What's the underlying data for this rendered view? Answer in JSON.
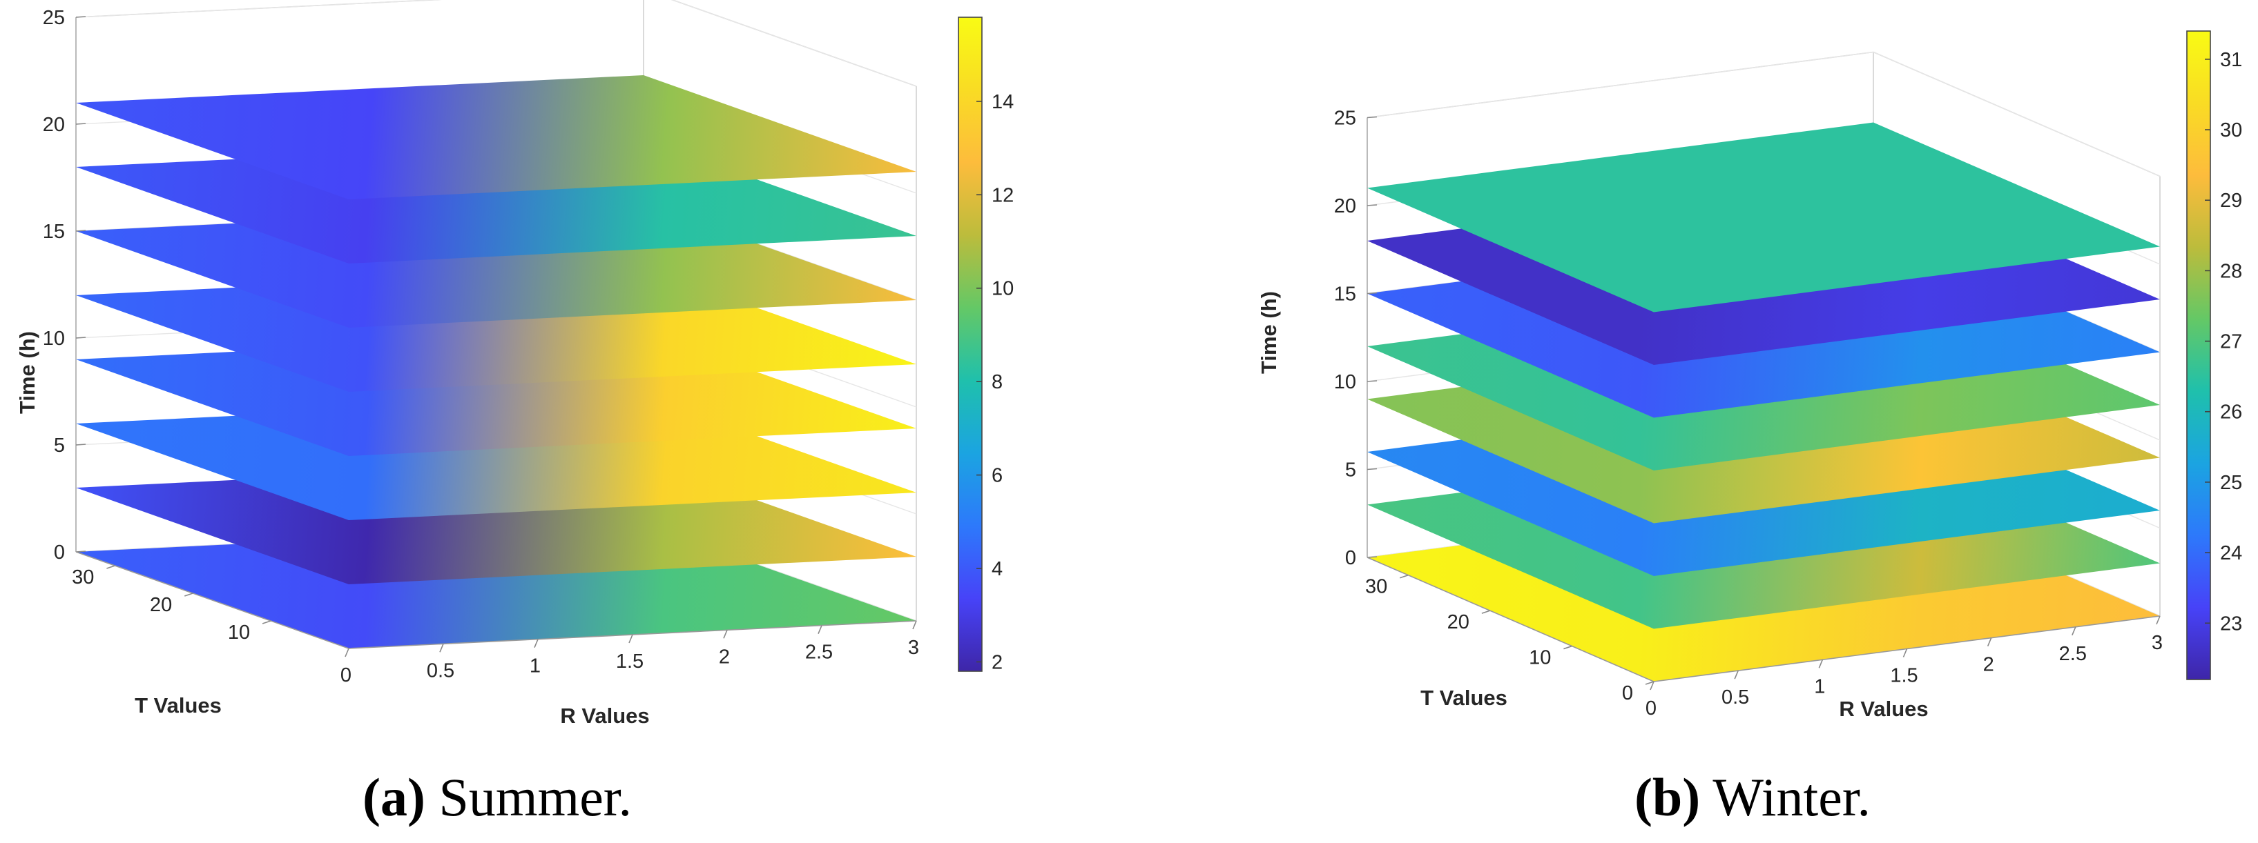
{
  "colormap": [
    "#3e26a8",
    "#4743f8",
    "#2d79fb",
    "#1ba4e1",
    "#1fc0ac",
    "#64c866",
    "#bcbc3c",
    "#fdbc3c",
    "#f9dc24",
    "#f9fb14"
  ],
  "chart_data": [
    {
      "type": "slice-surface-3d",
      "caption_letter": "(a)",
      "caption_text": " Summer.",
      "xlabel": "R Values",
      "ylabel": "T Values",
      "zlabel": "Time (h)",
      "xlim": [
        0,
        3
      ],
      "ylim": [
        0,
        35
      ],
      "zlim": [
        0,
        25
      ],
      "xticks": [
        "0",
        "0.5",
        "1",
        "1.5",
        "2",
        "2.5",
        "3"
      ],
      "xtick_values": [
        0,
        0.5,
        1,
        1.5,
        2,
        2.5,
        3
      ],
      "yticks": [
        "10",
        "20",
        "30"
      ],
      "ytick_values": [
        10,
        20,
        30
      ],
      "zticks": [
        "0",
        "5",
        "10",
        "15",
        "20",
        "25"
      ],
      "ztick_values": [
        0,
        5,
        10,
        15,
        20,
        25
      ],
      "colorbar_ticks": [
        "2",
        "4",
        "6",
        "8",
        "10",
        "12",
        "14"
      ],
      "colorbar_tick_values": [
        2,
        4,
        6,
        8,
        10,
        12,
        14
      ],
      "colorbar_range": [
        1.8,
        15.8
      ],
      "slices": [
        {
          "time": 0,
          "near": 3.6,
          "far": 4.2,
          "mid": 9.0,
          "right": 9.6
        },
        {
          "time": 3,
          "near": 1.9,
          "far": 3.8,
          "mid": 10.8,
          "right": 12.8
        },
        {
          "time": 6,
          "near": 4.6,
          "far": 4.8,
          "mid": 13.8,
          "right": 14.8
        },
        {
          "time": 9,
          "near": 4.0,
          "far": 4.6,
          "mid": 13.6,
          "right": 15.2
        },
        {
          "time": 12,
          "near": 3.8,
          "far": 4.4,
          "mid": 14.0,
          "right": 15.4
        },
        {
          "time": 15,
          "near": 3.6,
          "far": 4.2,
          "mid": 10.4,
          "right": 12.6
        },
        {
          "time": 18,
          "near": 3.2,
          "far": 4.0,
          "mid": 8.2,
          "right": 8.6
        },
        {
          "time": 21,
          "near": 3.4,
          "far": 3.9,
          "mid": 10.4,
          "right": 12.6
        }
      ]
    },
    {
      "type": "slice-surface-3d",
      "caption_letter": "(b)",
      "caption_text": " Winter.",
      "xlabel": "R Values",
      "ylabel": "T Values",
      "zlabel": "Time (h)",
      "xlim": [
        0,
        3
      ],
      "ylim": [
        0,
        35
      ],
      "zlim": [
        0,
        25
      ],
      "xticks": [
        "0",
        "0.5",
        "1",
        "1.5",
        "2",
        "2.5",
        "3"
      ],
      "xtick_values": [
        0,
        0.5,
        1,
        1.5,
        2,
        2.5,
        3
      ],
      "yticks": [
        "0",
        "10",
        "20",
        "30"
      ],
      "ytick_values": [
        0,
        10,
        20,
        30
      ],
      "zticks": [
        "0",
        "5",
        "10",
        "15",
        "20",
        "25"
      ],
      "ztick_values": [
        0,
        5,
        10,
        15,
        20,
        25
      ],
      "colorbar_ticks": [
        "23",
        "24",
        "25",
        "26",
        "27",
        "28",
        "29",
        "30",
        "31"
      ],
      "colorbar_tick_values": [
        23,
        24,
        25,
        26,
        27,
        28,
        29,
        30,
        31
      ],
      "colorbar_range": [
        22.2,
        31.4
      ],
      "slices": [
        {
          "time": 0,
          "near": 31.0,
          "far": 31.2,
          "mid": 29.8,
          "right": 29.4
        },
        {
          "time": 3,
          "near": 26.8,
          "far": 26.9,
          "mid": 28.6,
          "right": 27.0
        },
        {
          "time": 6,
          "near": 24.4,
          "far": 24.6,
          "mid": 25.8,
          "right": 25.6
        },
        {
          "time": 9,
          "near": 27.8,
          "far": 27.7,
          "mid": 29.6,
          "right": 28.6
        },
        {
          "time": 12,
          "near": 26.6,
          "far": 26.7,
          "mid": 27.6,
          "right": 27.2
        },
        {
          "time": 15,
          "near": 23.6,
          "far": 23.8,
          "mid": 24.8,
          "right": 24.4
        },
        {
          "time": 18,
          "near": 22.6,
          "far": 22.6,
          "mid": 23.0,
          "right": 22.8
        },
        {
          "time": 21,
          "near": 26.5,
          "far": 26.5,
          "mid": 26.5,
          "right": 26.5
        }
      ]
    }
  ]
}
